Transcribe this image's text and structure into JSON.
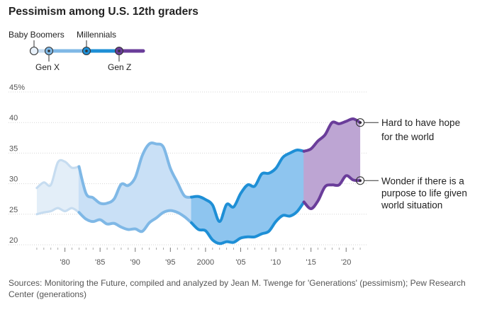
{
  "title": "Pessimism among U.S. 12th graders",
  "source": "Sources: Monitoring the Future, compiled and analyzed by Jean M. Twenge for 'Generations' (pessimism); Pew Research Center (generations)",
  "colors": {
    "baby_boomers": "#c6dcf0",
    "gen_x": "#7fb8e6",
    "millennials": "#1e8fd6",
    "gen_z": "#6a3d9a",
    "fill_baby_boomers": "#e3eef8",
    "fill_gen_x": "#c9e0f6",
    "fill_millennials": "#8ec5ef",
    "fill_gen_z": "#bda5d3",
    "grid": "#d5d5d5",
    "annotation_line": "#333333"
  },
  "legend": {
    "items": [
      {
        "name": "Baby Boomers",
        "color": "#c6dcf0"
      },
      {
        "name": "Gen X",
        "color": "#7fb8e6"
      },
      {
        "name": "Millennials",
        "color": "#1e8fd6"
      },
      {
        "name": "Gen Z",
        "color": "#6a3d9a"
      }
    ]
  },
  "chart_data": {
    "type": "area",
    "title": "Pessimism among U.S. 12th graders",
    "xlabel": "",
    "ylabel": "%",
    "xlim": [
      1975,
      2023
    ],
    "ylim": [
      20,
      45
    ],
    "y_ticks": [
      20,
      25,
      30,
      35,
      40,
      45
    ],
    "y_tick_labels": [
      "20",
      "25",
      "30",
      "35",
      "40",
      "45%"
    ],
    "x_ticks": [
      1980,
      1985,
      1990,
      1995,
      2000,
      2005,
      2010,
      2015,
      2020
    ],
    "x_tick_labels": [
      "'80",
      "'85",
      "'90",
      "'95",
      "2000",
      "'05",
      "'10",
      "'15",
      "'20"
    ],
    "generation_segments": [
      {
        "name": "Baby Boomers",
        "start": 1976,
        "end": 1982
      },
      {
        "name": "Gen X",
        "start": 1982,
        "end": 1998
      },
      {
        "name": "Millennials",
        "start": 1998,
        "end": 2014
      },
      {
        "name": "Gen Z",
        "start": 2014,
        "end": 2022
      }
    ],
    "series": [
      {
        "name": "Hard to have hope for the world",
        "x": [
          1976,
          1977,
          1978,
          1979,
          1980,
          1981,
          1982,
          1983,
          1984,
          1985,
          1986,
          1987,
          1988,
          1989,
          1990,
          1991,
          1992,
          1993,
          1994,
          1995,
          1996,
          1997,
          1998,
          1999,
          2000,
          2001,
          2002,
          2003,
          2004,
          2005,
          2006,
          2007,
          2008,
          2009,
          2010,
          2011,
          2012,
          2013,
          2014,
          2015,
          2016,
          2017,
          2018,
          2019,
          2020,
          2021,
          2022
        ],
        "values": [
          29.3,
          30.2,
          29.8,
          33.5,
          33.6,
          32.6,
          32.8,
          28.4,
          27.7,
          26.8,
          26.8,
          27.5,
          29.9,
          29.7,
          31.0,
          34.6,
          36.5,
          36.5,
          36.0,
          32.5,
          30.2,
          28.0,
          27.8,
          27.9,
          27.4,
          26.5,
          23.8,
          26.6,
          26.2,
          28.4,
          29.8,
          29.6,
          31.6,
          31.7,
          32.5,
          34.3,
          35.0,
          35.5,
          35.3,
          35.7,
          37.0,
          38.0,
          40.0,
          39.8,
          40.2,
          40.6,
          40.0
        ]
      },
      {
        "name": "Wonder if there is a purpose to life given world situation",
        "x": [
          1976,
          1977,
          1978,
          1979,
          1980,
          1981,
          1982,
          1983,
          1984,
          1985,
          1986,
          1987,
          1988,
          1989,
          1990,
          1991,
          1992,
          1993,
          1994,
          1995,
          1996,
          1997,
          1998,
          1999,
          2000,
          2001,
          2002,
          2003,
          2004,
          2005,
          2006,
          2007,
          2008,
          2009,
          2010,
          2011,
          2012,
          2013,
          2014,
          2015,
          2016,
          2017,
          2018,
          2019,
          2020,
          2021,
          2022
        ],
        "values": [
          25.0,
          25.3,
          25.5,
          26.0,
          25.5,
          26.0,
          25.3,
          24.2,
          23.8,
          24.1,
          23.4,
          23.5,
          22.9,
          22.5,
          22.6,
          22.2,
          23.6,
          24.4,
          25.3,
          25.6,
          25.3,
          24.6,
          23.6,
          22.5,
          22.3,
          20.8,
          20.2,
          20.5,
          20.4,
          21.1,
          21.3,
          21.3,
          21.8,
          22.2,
          23.8,
          24.8,
          24.7,
          25.4,
          27.0,
          25.9,
          27.2,
          29.5,
          29.8,
          29.8,
          31.3,
          30.6,
          30.5
        ]
      }
    ],
    "annotations": [
      {
        "series": 0,
        "lines": [
          "Hard to have hope",
          "for the world"
        ]
      },
      {
        "series": 1,
        "lines": [
          "Wonder if there is a",
          "purpose to life given",
          "world situation"
        ]
      }
    ]
  }
}
